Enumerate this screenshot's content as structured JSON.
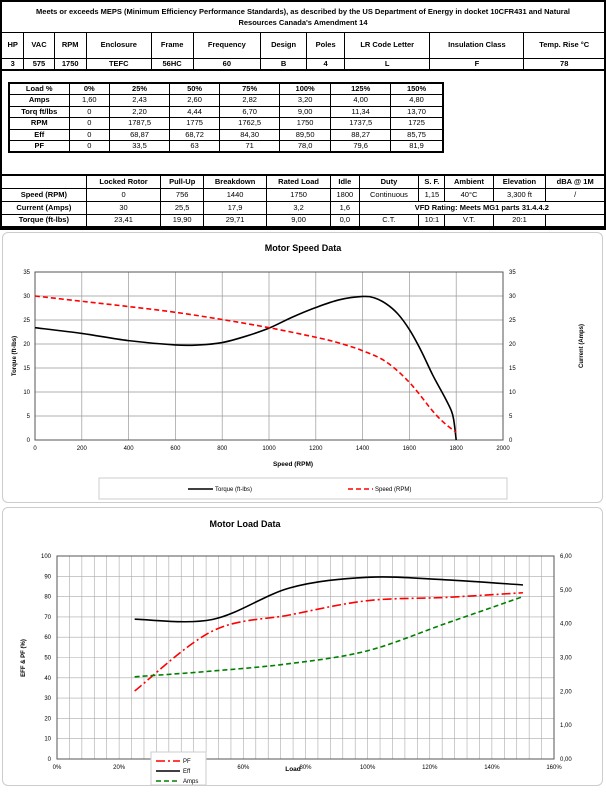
{
  "header": {
    "title": "Meets or exceeds MEPS (Minimum Efficiency Performance Standards), as described by the US Department of Energy in docket 10CFR431 and Natural Resources Canada's Amendment 14",
    "columns": [
      "HP",
      "VAC",
      "RPM",
      "Enclosure",
      "Frame",
      "Frequency",
      "Design",
      "Poles",
      "LR Code Letter",
      "Insulation Class",
      "Temp. Rise °C"
    ],
    "values": [
      "3",
      "575",
      "1750",
      "TEFC",
      "56HC",
      "60",
      "B",
      "4",
      "L",
      "F",
      "78"
    ]
  },
  "load_table": {
    "rows": [
      [
        "Load %",
        "0%",
        "25%",
        "50%",
        "75%",
        "100%",
        "125%",
        "150%"
      ],
      [
        "Amps",
        "1,60",
        "2,43",
        "2,60",
        "2,82",
        "3,20",
        "4,00",
        "4,80"
      ],
      [
        "Torq ft/lbs",
        "0",
        "2,20",
        "4,44",
        "6,70",
        "9,00",
        "11,34",
        "13,70"
      ],
      [
        "RPM",
        "0",
        "1787,5",
        "1775",
        "1762,5",
        "1750",
        "1737,5",
        "1725"
      ],
      [
        "Eff",
        "0",
        "68,87",
        "68,72",
        "84,30",
        "89,50",
        "88,27",
        "85,75"
      ],
      [
        "PF",
        "0",
        "33,5",
        "63",
        "71",
        "78,0",
        "79,6",
        "81,9"
      ]
    ]
  },
  "perf_table": {
    "header": [
      "",
      "Locked Rotor",
      "Pull-Up",
      "Breakdown",
      "Rated Load",
      "Idle",
      "Duty",
      "S. F.",
      "Ambient",
      "Elevation",
      "dBA @ 1M"
    ],
    "speed": [
      "Speed (RPM)",
      "0",
      "756",
      "1440",
      "1750",
      "1800",
      "Continuous",
      "1,15",
      "40°C",
      "3,300 ft",
      "/"
    ],
    "current": [
      "Current (Amps)",
      "30",
      "25,5",
      "17,9",
      "3,2",
      "1,6"
    ],
    "vfd": "VFD Rating: Meets MG1 parts 31.4.4.2",
    "torque": [
      "Torque (ft-lbs)",
      "23,41",
      "19,90",
      "29,71",
      "9,00",
      "0,0",
      "C.T.",
      "10:1",
      "V.T.",
      "20:1",
      ""
    ]
  },
  "chart_data": [
    {
      "type": "line",
      "title": "Motor Speed Data",
      "xlabel": "Speed (RPM)",
      "ylabel": "Torque (ft-lbs)",
      "y2label": "Current (Amps)",
      "xlim": [
        0,
        2000
      ],
      "ylim": [
        0,
        35
      ],
      "y2lim": [
        0,
        35
      ],
      "xticks": [
        "0",
        "200",
        "400",
        "600",
        "800",
        "1000",
        "1200",
        "1400",
        "1600",
        "1800",
        "2000"
      ],
      "yticks": [
        "0",
        "5",
        "10",
        "15",
        "20",
        "25",
        "30",
        "35"
      ],
      "grid": true,
      "legend": "bottom",
      "series": [
        {
          "name": "Torque (ft-lbs)",
          "color": "#000000",
          "style": "solid",
          "x": [
            0,
            200,
            400,
            600,
            700,
            800,
            900,
            1000,
            1100,
            1200,
            1300,
            1400,
            1450,
            1500,
            1550,
            1600,
            1650,
            1700,
            1750,
            1780,
            1790,
            1800
          ],
          "y": [
            23.4,
            22.2,
            20.7,
            19.8,
            19.8,
            20.3,
            21.6,
            23.3,
            25.6,
            27.6,
            29.2,
            29.9,
            29.6,
            28.4,
            26.3,
            23,
            18.6,
            13.5,
            9,
            6,
            4,
            0
          ]
        },
        {
          "name": "Speed (RPM)",
          "color": "#ff0000",
          "style": "dashed",
          "x": [
            0,
            200,
            400,
            600,
            800,
            1000,
            1200,
            1300,
            1400,
            1500,
            1600,
            1700,
            1750,
            1800
          ],
          "y": [
            30,
            28.9,
            27.8,
            26.6,
            25.1,
            23.4,
            21.4,
            20.2,
            18.6,
            16.3,
            12,
            6,
            3.5,
            1.6
          ]
        }
      ]
    },
    {
      "type": "line",
      "title": "Motor Load Data",
      "xlabel": "Load",
      "ylabel": "EFF & PF (%)",
      "xlim": [
        0,
        160
      ],
      "ylim": [
        0,
        100
      ],
      "y2lim": [
        0,
        6
      ],
      "xticks": [
        "0%",
        "20%",
        "40%",
        "60%",
        "80%",
        "100%",
        "120%",
        "140%",
        "160%"
      ],
      "yticks": [
        "0",
        "10",
        "20",
        "30",
        "40",
        "50",
        "60",
        "70",
        "80",
        "90",
        "100"
      ],
      "y2ticks": [
        "0,00",
        "1,00",
        "2,00",
        "3,00",
        "4,00",
        "5,00",
        "6,00"
      ],
      "grid": true,
      "legend": "bottom-left",
      "series": [
        {
          "name": "PF",
          "color": "#ff0000",
          "style": "dashdot",
          "axis": "left",
          "x": [
            25,
            50,
            75,
            100,
            125,
            150
          ],
          "y": [
            33.5,
            63,
            71,
            78,
            79.6,
            81.9
          ]
        },
        {
          "name": "Eff",
          "color": "#000000",
          "style": "solid",
          "axis": "left",
          "x": [
            25,
            50,
            75,
            100,
            125,
            150
          ],
          "y": [
            68.87,
            68.72,
            84.3,
            89.5,
            88.27,
            85.75
          ]
        },
        {
          "name": "Amps",
          "color": "#008000",
          "style": "dashed",
          "axis": "right",
          "x": [
            25,
            50,
            75,
            100,
            125,
            150
          ],
          "y": [
            2.43,
            2.6,
            2.82,
            3.2,
            4.0,
            4.8
          ]
        }
      ]
    }
  ]
}
